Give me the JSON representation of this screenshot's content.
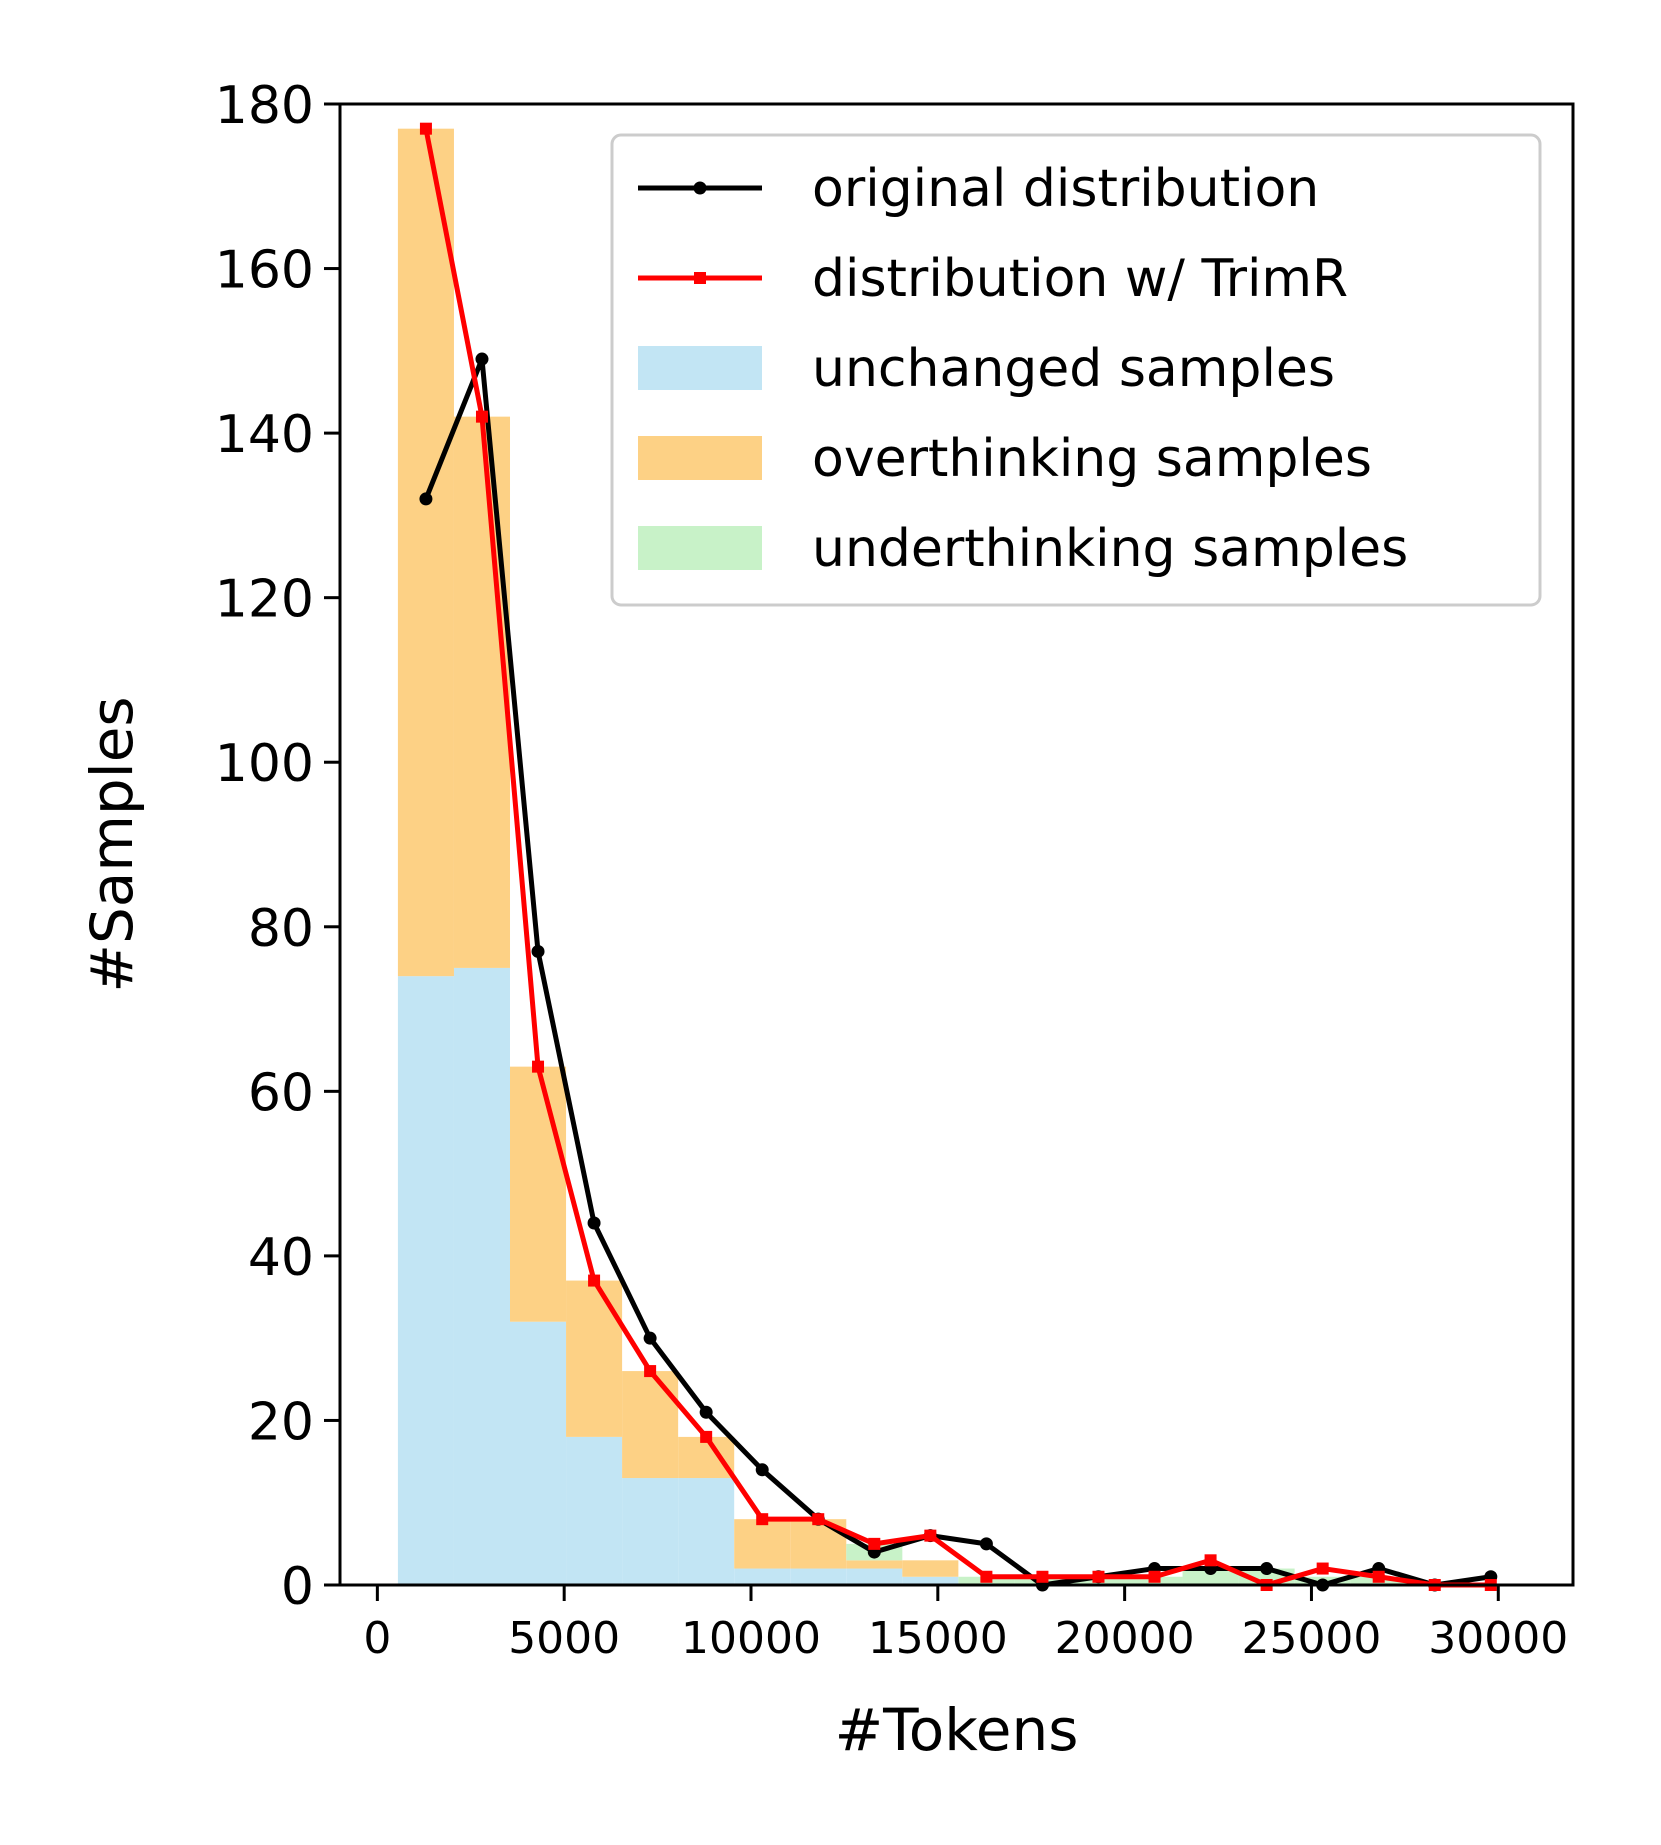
{
  "chart_data": {
    "type": "bar",
    "xlabel": "#Tokens",
    "ylabel": "#Samples",
    "xlim": [
      -1000,
      32000
    ],
    "ylim": [
      0,
      180
    ],
    "x_ticks": [
      0,
      5000,
      10000,
      15000,
      20000,
      25000,
      30000
    ],
    "x_tick_labels": [
      "0",
      "5000",
      "10000",
      "15000",
      "20000",
      "25000",
      "30000"
    ],
    "y_ticks": [
      0,
      20,
      40,
      60,
      80,
      100,
      120,
      140,
      160,
      180
    ],
    "y_tick_labels": [
      "0",
      "20",
      "40",
      "60",
      "80",
      "100",
      "120",
      "140",
      "160",
      "180"
    ],
    "bin_edges": [
      550,
      2050,
      3550,
      5050,
      6550,
      8050,
      9550,
      11050,
      12550,
      14050,
      15550,
      17050,
      18550,
      20050,
      21550,
      23050,
      24550,
      26050,
      27550,
      29050
    ],
    "stacked_series": [
      {
        "name": "unchanged samples",
        "color": "#c2e5f4",
        "values": [
          74,
          75,
          32,
          18,
          13,
          13,
          2,
          2,
          2,
          1,
          0,
          0,
          0,
          0,
          0,
          0,
          0,
          0,
          0
        ]
      },
      {
        "name": "overthinking samples",
        "color": "#fdd185",
        "values": [
          103,
          67,
          31,
          19,
          13,
          5,
          6,
          6,
          1,
          2,
          0,
          0,
          0,
          0,
          0,
          0,
          0,
          0,
          0
        ]
      },
      {
        "name": "underthinking samples",
        "color": "#c8f2c8",
        "values": [
          0,
          0,
          0,
          0,
          0,
          0,
          0,
          0,
          2,
          0,
          1,
          1,
          1,
          1,
          2,
          2,
          1,
          1,
          0
        ]
      }
    ],
    "line_series": [
      {
        "name": "original distribution",
        "color": "#000000",
        "marker": "circle",
        "x": [
          1300,
          2800,
          4300,
          5800,
          7300,
          8800,
          10300,
          11800,
          13300,
          14800,
          16300,
          17800,
          19300,
          20800,
          22300,
          23800,
          25300,
          26800,
          28300,
          29800
        ],
        "y": [
          132,
          149,
          77,
          44,
          30,
          21,
          14,
          8,
          4,
          6,
          5,
          0,
          1,
          2,
          2,
          2,
          0,
          2,
          0,
          1
        ]
      },
      {
        "name": "distribution w/ TrimR",
        "color": "#ff0000",
        "marker": "square",
        "x": [
          1300,
          2800,
          4300,
          5800,
          7300,
          8800,
          10300,
          11800,
          13300,
          14800,
          16300,
          17800,
          19300,
          20800,
          22300,
          23800,
          25300,
          26800,
          28300,
          29800
        ],
        "y": [
          177,
          142,
          63,
          37,
          26,
          18,
          8,
          8,
          5,
          6,
          1,
          1,
          1,
          1,
          3,
          0,
          2,
          1,
          0,
          0
        ]
      }
    ],
    "legend": {
      "position": "top-right",
      "entries": [
        "original distribution",
        "distribution w/ TrimR",
        "unchanged samples",
        "overthinking samples",
        "underthinking samples"
      ]
    }
  }
}
